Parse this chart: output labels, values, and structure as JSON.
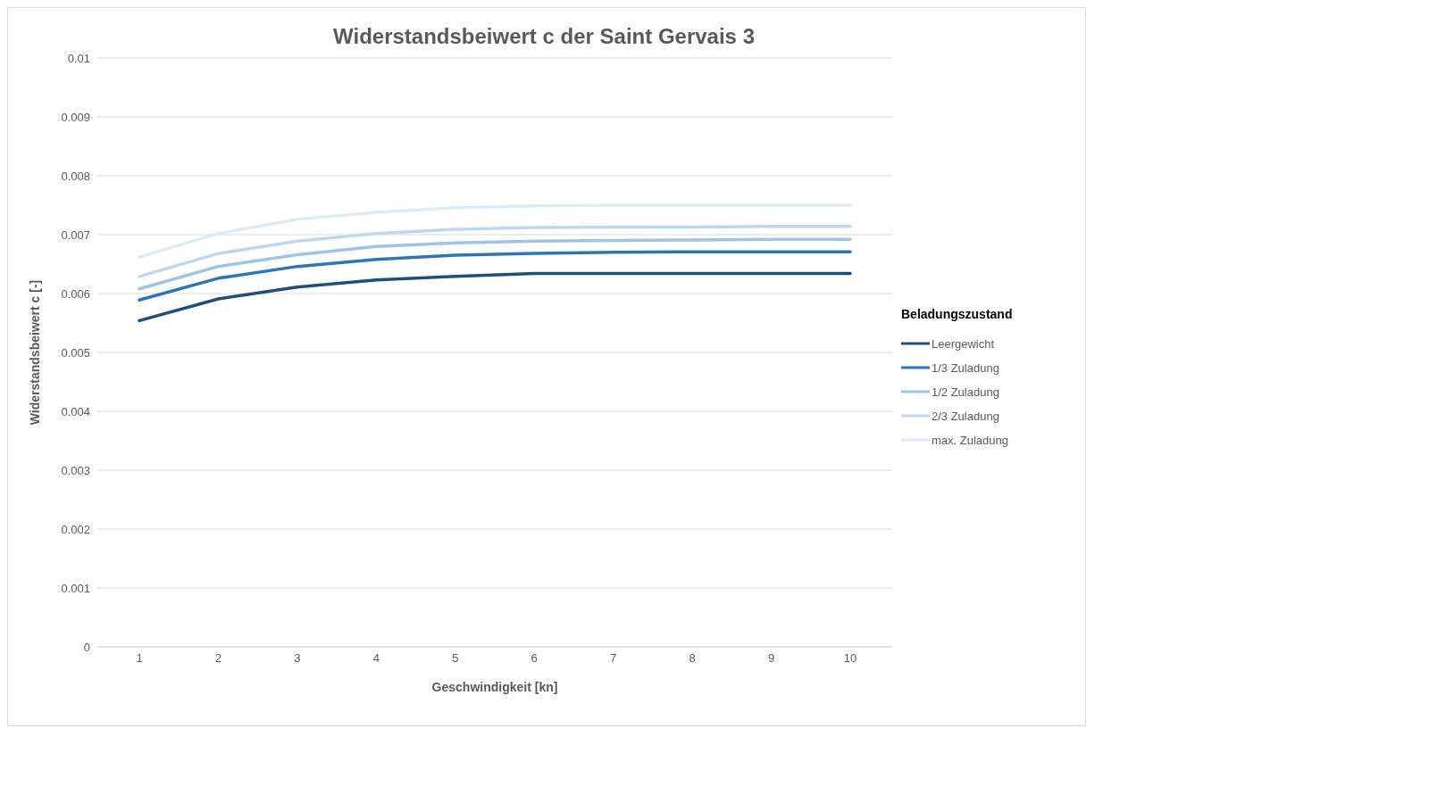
{
  "chart_data": {
    "type": "line",
    "title": "Widerstandsbeiwert c der Saint Gervais 3",
    "xlabel": "Geschwindigkeit [kn]",
    "ylabel": "Widerstandsbeiwert c [-]",
    "legend_title": "Beladungszustand",
    "categories": [
      "1",
      "2",
      "3",
      "4",
      "5",
      "6",
      "7",
      "8",
      "9",
      "10"
    ],
    "series": [
      {
        "name": "Leergewicht",
        "color": "#1f4e79",
        "values": [
          0.00554,
          0.00591,
          0.00611,
          0.00623,
          0.00629,
          0.00634,
          0.00634,
          0.00634,
          0.00634,
          0.00634
        ]
      },
      {
        "name": "1/3 Zuladung",
        "color": "#2e75b6",
        "values": [
          0.00589,
          0.00626,
          0.00646,
          0.00658,
          0.00665,
          0.00668,
          0.0067,
          0.00671,
          0.00671,
          0.00671
        ]
      },
      {
        "name": "1/2 Zuladung",
        "color": "#9dc3e6",
        "values": [
          0.00608,
          0.00646,
          0.00666,
          0.0068,
          0.00686,
          0.00689,
          0.0069,
          0.00691,
          0.00692,
          0.00692
        ]
      },
      {
        "name": "2/3 Zuladung",
        "color": "#bdd7ee",
        "values": [
          0.00629,
          0.00668,
          0.00689,
          0.00702,
          0.00709,
          0.00712,
          0.00713,
          0.00713,
          0.00714,
          0.00714
        ]
      },
      {
        "name": "max. Zuladung",
        "color": "#deebf7",
        "values": [
          0.00662,
          0.00702,
          0.00726,
          0.00738,
          0.00746,
          0.00749,
          0.0075,
          0.0075,
          0.0075,
          0.0075
        ]
      }
    ],
    "ylim": [
      0,
      0.01
    ],
    "yticks": [
      0,
      0.001,
      0.002,
      0.003,
      0.004,
      0.005,
      0.006,
      0.007,
      0.008,
      0.009,
      0.01
    ],
    "grid": "y",
    "legend": "right",
    "marker": "none",
    "line_style": "solid"
  }
}
